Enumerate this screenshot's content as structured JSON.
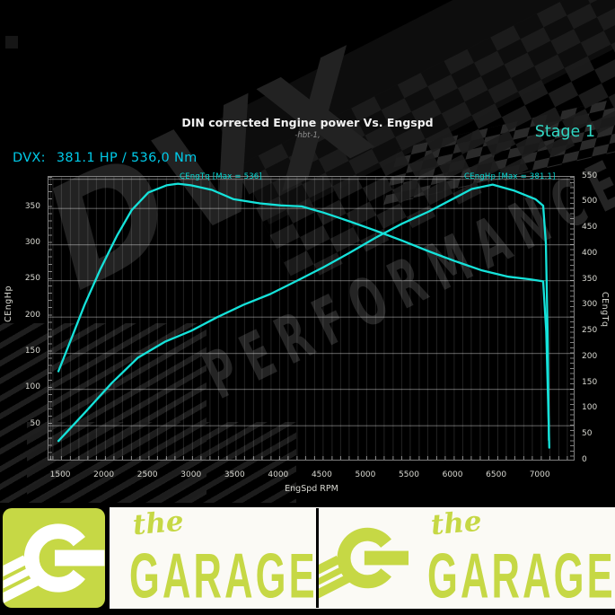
{
  "header": {
    "title": "DIN corrected Engine power Vs. Engspd",
    "subtitle": "-hbt-1,",
    "stage_label": "Stage 1",
    "result_label": "DVX:",
    "result_value": "381.1 HP / 536,0 Nm"
  },
  "chart_data": {
    "type": "line",
    "title": "DIN corrected Engine power Vs. Engspd",
    "xlabel": "EngSpd RPM",
    "ylabel_left": "CEngHp",
    "ylabel_right": "CEngTq",
    "grid": true,
    "line_color": "#15e2da",
    "axes": {
      "x": {
        "min": 1355,
        "max": 7400,
        "minor_step": 100,
        "ticks": [
          1500,
          2000,
          2500,
          3000,
          3500,
          4000,
          4500,
          5000,
          5500,
          6000,
          6500,
          7000
        ]
      },
      "left": {
        "min": 0,
        "max": 393,
        "ticks": [
          350,
          300,
          250,
          200,
          150,
          100,
          50
        ]
      },
      "right": {
        "min": 0,
        "max": 551,
        "ticks": [
          550,
          500,
          450,
          400,
          350,
          300,
          250,
          200,
          150,
          100,
          50,
          0
        ]
      }
    },
    "series": [
      {
        "name": "CEngHp",
        "axis": "left",
        "max": 381.1,
        "unit": "HP",
        "annotation": "CEngHp [Max = 381.1]",
        "points": [
          [
            1480,
            27
          ],
          [
            1780,
            66
          ],
          [
            2090,
            107
          ],
          [
            2390,
            142
          ],
          [
            2700,
            164
          ],
          [
            3000,
            179
          ],
          [
            3300,
            198
          ],
          [
            3600,
            215
          ],
          [
            3910,
            230
          ],
          [
            4210,
            248
          ],
          [
            4520,
            267
          ],
          [
            4820,
            287
          ],
          [
            5120,
            308
          ],
          [
            5420,
            327
          ],
          [
            5730,
            344
          ],
          [
            6030,
            363
          ],
          [
            6220,
            375
          ],
          [
            6460,
            381.1
          ],
          [
            6700,
            373
          ],
          [
            6950,
            361
          ],
          [
            7040,
            352
          ],
          [
            7070,
            300
          ],
          [
            7090,
            180
          ],
          [
            7105,
            28
          ]
        ]
      },
      {
        "name": "CEngTq",
        "axis": "right",
        "max": 536,
        "unit": "Nm",
        "annotation": "CEngTq [Max = 536]",
        "points": [
          [
            1480,
            173
          ],
          [
            1630,
            237
          ],
          [
            1780,
            302
          ],
          [
            1960,
            370
          ],
          [
            2150,
            435
          ],
          [
            2320,
            485
          ],
          [
            2510,
            519
          ],
          [
            2720,
            533
          ],
          [
            2850,
            536
          ],
          [
            3000,
            533
          ],
          [
            3240,
            524
          ],
          [
            3490,
            506
          ],
          [
            3790,
            498
          ],
          [
            4030,
            494
          ],
          [
            4270,
            492
          ],
          [
            4520,
            480
          ],
          [
            4820,
            463
          ],
          [
            5120,
            445
          ],
          [
            5420,
            426
          ],
          [
            5730,
            405
          ],
          [
            6030,
            386
          ],
          [
            6340,
            368
          ],
          [
            6640,
            356
          ],
          [
            6890,
            351
          ],
          [
            7040,
            347
          ],
          [
            7075,
            250
          ],
          [
            7095,
            120
          ],
          [
            7110,
            25
          ]
        ]
      }
    ]
  },
  "watermark": {
    "line1": "DVX",
    "line2": "PERFORMANCE"
  },
  "banner": {
    "accent_green": "#c6d845",
    "wordmark_top": "the",
    "wordmark_bottom": "GARAGE"
  }
}
